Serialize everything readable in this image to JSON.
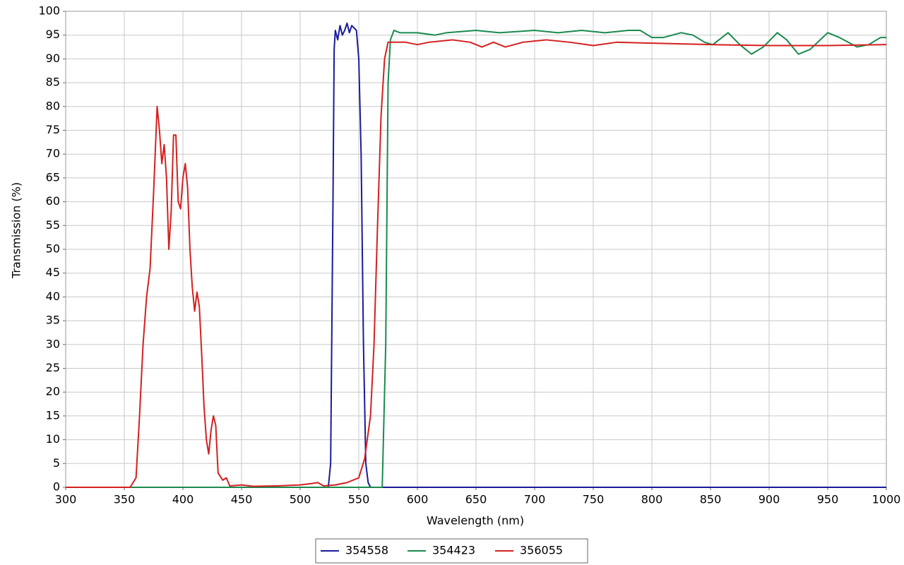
{
  "chart_data": {
    "type": "line",
    "xlabel": "Wavelength (nm)",
    "ylabel": "Transmission (%)",
    "xlim": [
      300,
      1000
    ],
    "ylim": [
      0,
      100
    ],
    "xticks": [
      300,
      350,
      400,
      450,
      500,
      550,
      600,
      650,
      700,
      750,
      800,
      850,
      900,
      950,
      1000
    ],
    "yticks": [
      0,
      5,
      10,
      15,
      20,
      25,
      30,
      35,
      40,
      45,
      50,
      55,
      60,
      65,
      70,
      75,
      80,
      85,
      90,
      95,
      100
    ],
    "grid": true,
    "legend": "bottom",
    "series": [
      {
        "name": "354558",
        "color": "#1a1a9c",
        "x": [
          300,
          524,
          526,
          528,
          529,
          530,
          532,
          534,
          536,
          538,
          540,
          542,
          544,
          546,
          548,
          550,
          552,
          554,
          556,
          558,
          560,
          1000
        ],
        "values": [
          0,
          0,
          5,
          60,
          92,
          96,
          94,
          97,
          95,
          96,
          97.5,
          95.5,
          97,
          96.5,
          96,
          90,
          70,
          30,
          5,
          1,
          0,
          0
        ]
      },
      {
        "name": "354423",
        "color": "#1a8a4e",
        "x": [
          300,
          570,
          573,
          575,
          577,
          580,
          585,
          600,
          615,
          625,
          650,
          670,
          700,
          720,
          740,
          760,
          780,
          790,
          800,
          810,
          825,
          835,
          845,
          852,
          865,
          875,
          885,
          895,
          907,
          915,
          925,
          935,
          950,
          960,
          975,
          985,
          995,
          1000
        ],
        "values": [
          0,
          0,
          30,
          85,
          94,
          96,
          95.5,
          95.5,
          95,
          95.5,
          96,
          95.5,
          96,
          95.5,
          96,
          95.5,
          96,
          96,
          94.5,
          94.5,
          95.5,
          95,
          93.5,
          93,
          95.5,
          93,
          91,
          92.5,
          95.5,
          94,
          91,
          92,
          95.5,
          94.5,
          92.5,
          93,
          94.5,
          94.5
        ]
      },
      {
        "name": "356055",
        "color": "#d42020",
        "x": [
          300,
          355,
          360,
          363,
          366,
          369,
          372,
          375,
          378,
          380,
          382,
          384,
          386,
          388,
          390,
          392,
          394,
          396,
          398,
          400,
          402,
          404,
          406,
          408,
          410,
          412,
          414,
          416,
          418,
          420,
          422,
          424,
          426,
          428,
          430,
          434,
          437,
          440,
          450,
          460,
          480,
          500,
          510,
          515,
          520,
          530,
          540,
          550,
          555,
          560,
          563,
          566,
          569,
          572,
          575,
          590,
          600,
          610,
          630,
          645,
          655,
          665,
          675,
          690,
          710,
          730,
          750,
          770,
          800,
          850,
          900,
          950,
          1000
        ],
        "values": [
          0,
          0,
          2,
          15,
          30,
          40,
          46,
          62,
          80,
          75,
          68,
          72,
          65,
          50,
          58,
          74,
          74,
          60,
          58.5,
          65,
          68,
          63,
          50,
          42,
          37,
          41,
          38,
          28,
          17,
          10,
          7,
          12,
          15,
          13,
          3,
          1.5,
          2,
          0.3,
          0.5,
          0.2,
          0.3,
          0.5,
          0.8,
          1,
          0.3,
          0.5,
          1,
          2,
          6,
          15,
          30,
          55,
          78,
          90,
          93.5,
          93.5,
          93,
          93.5,
          94,
          93.5,
          92.5,
          93.5,
          92.5,
          93.5,
          94,
          93.5,
          92.8,
          93.5,
          93.3,
          93,
          92.8,
          92.8,
          93
        ]
      }
    ]
  }
}
